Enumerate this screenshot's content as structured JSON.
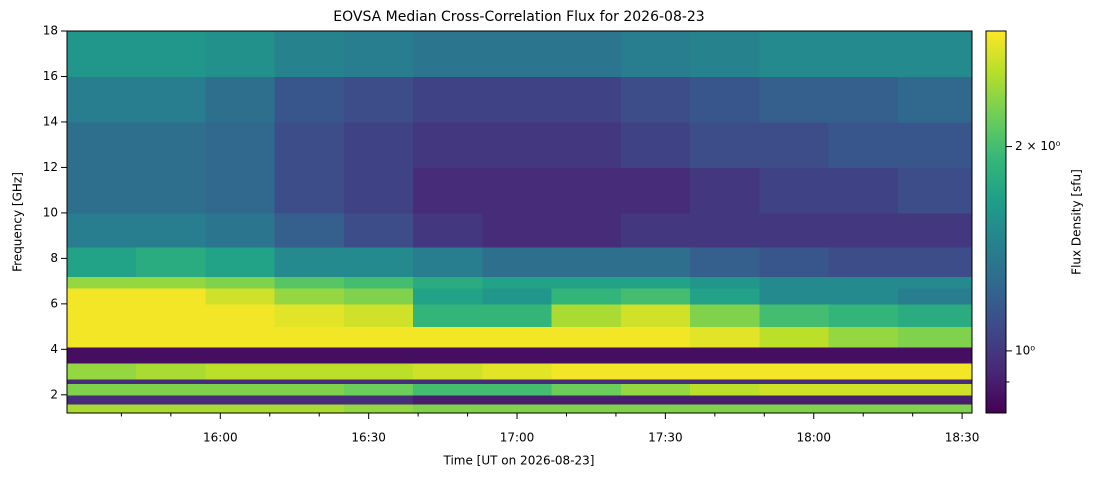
{
  "chart_data": {
    "type": "heatmap",
    "title": "EOVSA Median Cross-Correlation Flux for 2026-08-23",
    "x_label": "Time [UT on 2026-08-23]",
    "y_label": "Frequency [GHz]",
    "colorbar_label": "Flux Density [sfu]",
    "colormap": "viridis",
    "color_scale": "log",
    "xlim": [
      929,
      1112
    ],
    "xticks": [
      {
        "value": 960,
        "label": "16:00"
      },
      {
        "value": 990,
        "label": "16:30"
      },
      {
        "value": 1020,
        "label": "17:00"
      },
      {
        "value": 1050,
        "label": "17:30"
      },
      {
        "value": 1080,
        "label": "18:00"
      },
      {
        "value": 1110,
        "label": "18:30"
      }
    ],
    "xminorticks": [
      940,
      950,
      970,
      980,
      1000,
      1010,
      1030,
      1040,
      1060,
      1070,
      1090,
      1100
    ],
    "ylim": [
      1.2,
      18
    ],
    "yticks": [
      2,
      4,
      6,
      8,
      10,
      12,
      14,
      16,
      18
    ],
    "clim": [
      0.81,
      2.96
    ],
    "cticks": [
      {
        "value": 1,
        "label": "10⁰"
      },
      {
        "value": 2,
        "label": "2 × 10⁰"
      }
    ],
    "cminorticks": [
      0.9
    ],
    "x_edges": [
      929,
      943,
      957,
      971,
      985,
      999,
      1013,
      1027,
      1041,
      1055,
      1069,
      1083,
      1097,
      1112
    ],
    "y_edges": [
      1.2,
      1.6,
      2.0,
      2.5,
      2.7,
      3.4,
      4.1,
      5.0,
      6.0,
      6.7,
      7.2,
      8.5,
      10,
      12,
      14,
      16,
      18
    ],
    "z": [
      [
        2.5,
        2.5,
        2.5,
        2.5,
        2.4,
        2.3,
        2.3,
        2.3,
        2.3,
        2.3,
        2.3,
        2.3,
        2.3
      ],
      [
        0.95,
        0.95,
        0.95,
        0.95,
        0.95,
        0.9,
        0.9,
        0.9,
        0.9,
        0.9,
        0.9,
        0.9,
        0.9
      ],
      [
        2.3,
        2.3,
        2.3,
        2.3,
        2.2,
        2.0,
        2.0,
        2.2,
        2.4,
        2.6,
        2.7,
        2.7,
        2.7
      ],
      [
        0.95,
        0.95,
        0.95,
        0.95,
        0.95,
        0.95,
        0.95,
        0.95,
        0.95,
        0.95,
        0.95,
        0.95,
        0.95
      ],
      [
        2.4,
        2.5,
        2.6,
        2.6,
        2.6,
        2.7,
        2.8,
        2.9,
        2.9,
        2.9,
        2.9,
        2.9,
        2.9
      ],
      [
        0.85,
        0.85,
        0.85,
        0.85,
        0.85,
        0.85,
        0.85,
        0.85,
        0.85,
        0.85,
        0.85,
        0.85,
        0.85
      ],
      [
        2.9,
        2.9,
        2.9,
        2.9,
        2.9,
        2.9,
        2.9,
        2.9,
        2.9,
        2.8,
        2.6,
        2.4,
        2.3
      ],
      [
        2.9,
        2.9,
        2.9,
        2.8,
        2.7,
        1.9,
        1.9,
        2.5,
        2.7,
        2.3,
        2.0,
        1.9,
        1.8
      ],
      [
        2.9,
        2.9,
        2.7,
        2.4,
        2.3,
        1.7,
        1.6,
        1.9,
        2.0,
        1.7,
        1.5,
        1.5,
        1.4
      ],
      [
        2.4,
        2.4,
        2.3,
        2.1,
        2.0,
        1.8,
        1.7,
        1.7,
        1.7,
        1.6,
        1.5,
        1.5,
        1.5
      ],
      [
        1.7,
        1.8,
        1.7,
        1.5,
        1.5,
        1.4,
        1.3,
        1.3,
        1.3,
        1.2,
        1.15,
        1.1,
        1.1
      ],
      [
        1.4,
        1.4,
        1.35,
        1.2,
        1.1,
        1.0,
        0.95,
        0.95,
        1.0,
        1.0,
        1.0,
        1.0,
        1.0
      ],
      [
        1.3,
        1.3,
        1.25,
        1.1,
        1.05,
        0.95,
        0.95,
        0.95,
        0.95,
        1.0,
        1.05,
        1.05,
        1.1
      ],
      [
        1.3,
        1.3,
        1.25,
        1.1,
        1.05,
        1.0,
        1.0,
        1.0,
        1.05,
        1.1,
        1.1,
        1.15,
        1.15
      ],
      [
        1.4,
        1.4,
        1.3,
        1.15,
        1.1,
        1.05,
        1.05,
        1.05,
        1.1,
        1.15,
        1.2,
        1.2,
        1.25
      ],
      [
        1.6,
        1.6,
        1.55,
        1.45,
        1.4,
        1.35,
        1.35,
        1.35,
        1.4,
        1.45,
        1.5,
        1.5,
        1.5
      ]
    ]
  }
}
